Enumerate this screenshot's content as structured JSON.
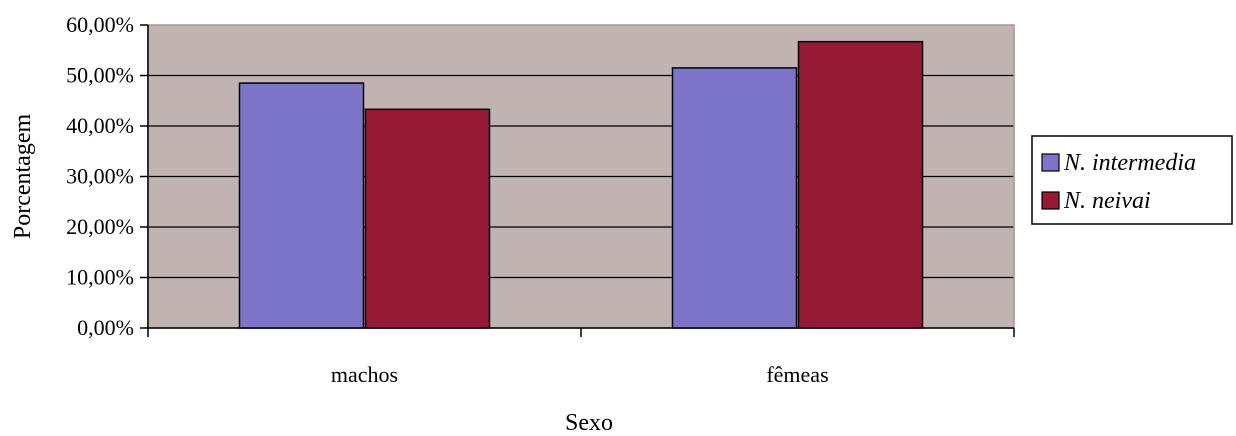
{
  "chart_data": {
    "type": "bar",
    "categories": [
      "machos",
      "fêmeas"
    ],
    "series": [
      {
        "name": "N. intermedia",
        "values": [
          48.5,
          51.5
        ],
        "color": "#7b74c7"
      },
      {
        "name": "N. neivai",
        "values": [
          43.3,
          56.7
        ],
        "color": "#961a35"
      }
    ],
    "ylim": [
      0,
      60
    ],
    "yticks": [
      "0,00%",
      "10,00%",
      "20,00%",
      "30,00%",
      "40,00%",
      "50,00%",
      "60,00%"
    ],
    "xlabel": "Sexo",
    "ylabel": "Porcentagem",
    "grid": true,
    "legend_position": "right",
    "plot_background": "#c0b3b1"
  }
}
